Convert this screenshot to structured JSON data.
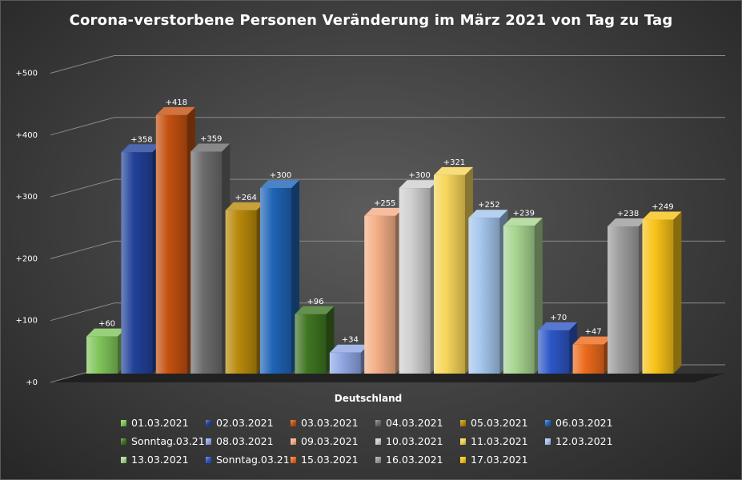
{
  "chart_data": {
    "type": "bar",
    "title": "Corona-verstorbene Personen Veränderung  im März 2021 von Tag zu Tag",
    "xlabel": "",
    "ylabel": "",
    "categories": [
      "Deutschland"
    ],
    "ylim": [
      0,
      500
    ],
    "yticks": [
      "+0",
      "+100",
      "+200",
      "+300",
      "+400",
      "+500"
    ],
    "grid": true,
    "legend_position": "bottom",
    "series": [
      {
        "name": "01.03.2021",
        "value": 60,
        "label": "+60",
        "color": "#7fc45a"
      },
      {
        "name": "02.03.2021",
        "value": 358,
        "label": "+358",
        "color": "#22419a"
      },
      {
        "name": "03.03.2021",
        "value": 418,
        "label": "+418",
        "color": "#c4500f"
      },
      {
        "name": "04.03.2021",
        "value": 359,
        "label": "+359",
        "color": "#6c6c6c"
      },
      {
        "name": "05.03.2021",
        "value": 264,
        "label": "+264",
        "color": "#b98a0a"
      },
      {
        "name": "06.03.2021",
        "value": 300,
        "label": "+300",
        "color": "#1f64b6"
      },
      {
        "name": "Sonntag.03.21",
        "value": 96,
        "label": "+96",
        "color": "#3f7522"
      },
      {
        "name": "08.03.2021",
        "value": 34,
        "label": "+34",
        "color": "#8fa6e4"
      },
      {
        "name": "09.03.2021",
        "value": 255,
        "label": "+255",
        "color": "#f4ae86"
      },
      {
        "name": "10.03.2021",
        "value": 300,
        "label": "+300",
        "color": "#cfcfcf"
      },
      {
        "name": "11.03.2021",
        "value": 321,
        "label": "+321",
        "color": "#f6d559"
      },
      {
        "name": "12.03.2021",
        "value": 252,
        "label": "+252",
        "color": "#a4c6ec"
      },
      {
        "name": "13.03.2021",
        "value": 239,
        "label": "+239",
        "color": "#a7d48f"
      },
      {
        "name": "Sonntag.03.21",
        "value": 70,
        "label": "+70",
        "color": "#2d57c6"
      },
      {
        "name": "15.03.2021",
        "value": 47,
        "label": "+47",
        "color": "#ec6a1c"
      },
      {
        "name": "16.03.2021",
        "value": 238,
        "label": "+238",
        "color": "#9c9c9c"
      },
      {
        "name": "17.03.2021",
        "value": 249,
        "label": "+249",
        "color": "#f8c218"
      }
    ]
  }
}
